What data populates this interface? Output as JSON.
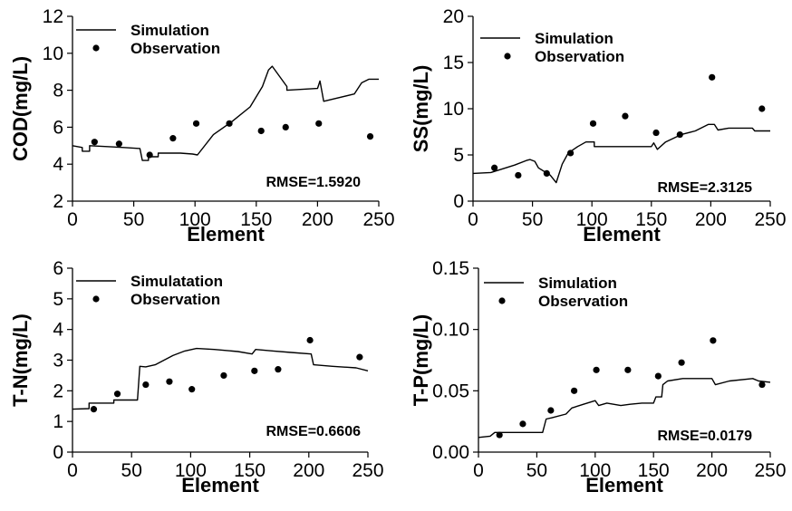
{
  "chart_data": [
    {
      "type": "line",
      "ylabel": "COD(mg/L)",
      "xlabel": "Element",
      "xlim": [
        0,
        250
      ],
      "ylim": [
        2,
        12
      ],
      "xticks": [
        "0",
        "50",
        "100",
        "150",
        "200",
        "250"
      ],
      "yticks": [
        "2",
        "4",
        "6",
        "8",
        "10",
        "12"
      ],
      "legend": [
        "Simulation",
        "Observation"
      ],
      "annotation": "RMSE=1.5920",
      "series": [
        {
          "name": "Simulation",
          "style": "line",
          "points": [
            [
              0,
              5.0
            ],
            [
              8,
              4.9
            ],
            [
              8,
              4.7
            ],
            [
              14,
              4.7
            ],
            [
              14,
              5.0
            ],
            [
              42,
              4.9
            ],
            [
              55,
              4.85
            ],
            [
              57,
              4.2
            ],
            [
              62,
              4.2
            ],
            [
              62,
              4.4
            ],
            [
              70,
              4.4
            ],
            [
              70,
              4.6
            ],
            [
              88,
              4.6
            ],
            [
              98,
              4.55
            ],
            [
              102,
              4.5
            ],
            [
              115,
              5.6
            ],
            [
              130,
              6.3
            ],
            [
              145,
              7.1
            ],
            [
              155,
              8.2
            ],
            [
              160,
              9.1
            ],
            [
              163,
              9.3
            ],
            [
              175,
              8.2
            ],
            [
              175,
              8.0
            ],
            [
              200,
              8.1
            ],
            [
              202,
              8.5
            ],
            [
              205,
              7.4
            ],
            [
              230,
              7.8
            ],
            [
              236,
              8.4
            ],
            [
              242,
              8.6
            ],
            [
              250,
              8.6
            ]
          ]
        },
        {
          "name": "Observation",
          "style": "points",
          "points": [
            [
              18,
              5.2
            ],
            [
              38,
              5.1
            ],
            [
              63,
              4.5
            ],
            [
              82,
              5.4
            ],
            [
              101,
              6.2
            ],
            [
              128,
              6.2
            ],
            [
              154,
              5.8
            ],
            [
              174,
              6.0
            ],
            [
              201,
              6.2
            ],
            [
              243,
              5.5
            ]
          ]
        }
      ]
    },
    {
      "type": "line",
      "ylabel": "SS(mg/L)",
      "xlabel": "Element",
      "xlim": [
        0,
        250
      ],
      "ylim": [
        0,
        20
      ],
      "xticks": [
        "0",
        "50",
        "100",
        "150",
        "200",
        "250"
      ],
      "yticks": [
        "0",
        "5",
        "10",
        "15",
        "20"
      ],
      "legend": [
        "Simulation",
        "Observation"
      ],
      "annotation": "RMSE=2.3125",
      "series": [
        {
          "name": "Simulation",
          "style": "line",
          "points": [
            [
              0,
              3.0
            ],
            [
              15,
              3.1
            ],
            [
              25,
              3.5
            ],
            [
              35,
              3.9
            ],
            [
              45,
              4.4
            ],
            [
              48,
              4.5
            ],
            [
              52,
              4.3
            ],
            [
              55,
              3.6
            ],
            [
              65,
              2.8
            ],
            [
              70,
              2.0
            ],
            [
              75,
              4.0
            ],
            [
              80,
              5.2
            ],
            [
              88,
              5.9
            ],
            [
              95,
              6.4
            ],
            [
              102,
              6.4
            ],
            [
              102,
              5.9
            ],
            [
              150,
              5.9
            ],
            [
              152,
              6.3
            ],
            [
              155,
              5.6
            ],
            [
              162,
              6.4
            ],
            [
              175,
              7.2
            ],
            [
              187,
              7.6
            ],
            [
              198,
              8.3
            ],
            [
              203,
              8.3
            ],
            [
              206,
              7.7
            ],
            [
              215,
              7.9
            ],
            [
              235,
              7.9
            ],
            [
              237,
              7.6
            ],
            [
              250,
              7.6
            ]
          ]
        },
        {
          "name": "Observation",
          "style": "points",
          "points": [
            [
              18,
              3.6
            ],
            [
              38,
              2.8
            ],
            [
              62,
              3.0
            ],
            [
              82,
              5.2
            ],
            [
              101,
              8.4
            ],
            [
              128,
              9.2
            ],
            [
              154,
              7.4
            ],
            [
              174,
              7.2
            ],
            [
              201,
              13.4
            ],
            [
              243,
              10.0
            ]
          ]
        }
      ]
    },
    {
      "type": "line",
      "ylabel": "T-N(mg/L)",
      "xlabel": "Element",
      "xlim": [
        0,
        250
      ],
      "ylim": [
        0,
        6
      ],
      "xticks": [
        "0",
        "50",
        "100",
        "150",
        "200",
        "250"
      ],
      "yticks": [
        "0",
        "1",
        "2",
        "3",
        "4",
        "5",
        "6"
      ],
      "legend": [
        "Simulatation",
        "Observation"
      ],
      "annotation": "RMSE=0.6606",
      "series": [
        {
          "name": "Simulatation",
          "style": "line",
          "points": [
            [
              0,
              1.4
            ],
            [
              14,
              1.42
            ],
            [
              14,
              1.6
            ],
            [
              35,
              1.6
            ],
            [
              35,
              1.7
            ],
            [
              55,
              1.7
            ],
            [
              57,
              2.8
            ],
            [
              62,
              2.78
            ],
            [
              70,
              2.85
            ],
            [
              85,
              3.15
            ],
            [
              95,
              3.3
            ],
            [
              105,
              3.38
            ],
            [
              120,
              3.35
            ],
            [
              140,
              3.28
            ],
            [
              152,
              3.2
            ],
            [
              155,
              3.35
            ],
            [
              170,
              3.3
            ],
            [
              185,
              3.25
            ],
            [
              202,
              3.2
            ],
            [
              204,
              2.85
            ],
            [
              220,
              2.8
            ],
            [
              240,
              2.75
            ],
            [
              250,
              2.65
            ]
          ]
        },
        {
          "name": "Observation",
          "style": "points",
          "points": [
            [
              18,
              1.4
            ],
            [
              38,
              1.9
            ],
            [
              62,
              2.2
            ],
            [
              82,
              2.3
            ],
            [
              101,
              2.05
            ],
            [
              128,
              2.5
            ],
            [
              154,
              2.65
            ],
            [
              174,
              2.7
            ],
            [
              201,
              3.65
            ],
            [
              243,
              3.1
            ]
          ]
        }
      ]
    },
    {
      "type": "line",
      "ylabel": "T-P(mg/L)",
      "xlabel": "Element",
      "xlim": [
        0,
        250
      ],
      "ylim": [
        0.0,
        0.15
      ],
      "xticks": [
        "0",
        "50",
        "100",
        "150",
        "200",
        "250"
      ],
      "yticks": [
        "0.00",
        "0.05",
        "0.10",
        "0.15"
      ],
      "legend": [
        "Simulation",
        "Observation"
      ],
      "annotation": "RMSE=0.0179",
      "series": [
        {
          "name": "Simulation",
          "style": "line",
          "points": [
            [
              0,
              0.012
            ],
            [
              10,
              0.013
            ],
            [
              14,
              0.016
            ],
            [
              50,
              0.016
            ],
            [
              55,
              0.016
            ],
            [
              58,
              0.027
            ],
            [
              63,
              0.028
            ],
            [
              75,
              0.031
            ],
            [
              80,
              0.036
            ],
            [
              90,
              0.039
            ],
            [
              100,
              0.042
            ],
            [
              103,
              0.038
            ],
            [
              110,
              0.04
            ],
            [
              122,
              0.038
            ],
            [
              130,
              0.039
            ],
            [
              140,
              0.04
            ],
            [
              150,
              0.04
            ],
            [
              152,
              0.045
            ],
            [
              157,
              0.045
            ],
            [
              158,
              0.055
            ],
            [
              162,
              0.058
            ],
            [
              175,
              0.06
            ],
            [
              200,
              0.06
            ],
            [
              203,
              0.055
            ],
            [
              215,
              0.058
            ],
            [
              235,
              0.06
            ],
            [
              240,
              0.058
            ],
            [
              250,
              0.057
            ]
          ]
        },
        {
          "name": "Observation",
          "style": "points",
          "points": [
            [
              18,
              0.014
            ],
            [
              38,
              0.023
            ],
            [
              62,
              0.034
            ],
            [
              82,
              0.05
            ],
            [
              101,
              0.067
            ],
            [
              128,
              0.067
            ],
            [
              154,
              0.062
            ],
            [
              174,
              0.073
            ],
            [
              201,
              0.091
            ],
            [
              243,
              0.055
            ]
          ]
        }
      ]
    }
  ]
}
